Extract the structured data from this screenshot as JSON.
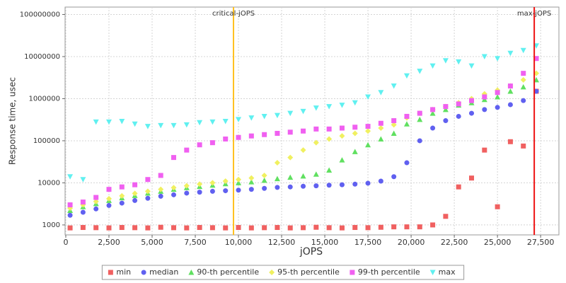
{
  "chart_data": {
    "type": "scatter",
    "x_label": "jOPS",
    "y_label": "Response time, usec",
    "yscale": "log",
    "grid": true,
    "legend": "bottom",
    "xlim": [
      -40,
      28560
    ],
    "ylim": [
      580,
      150000000
    ],
    "xticks": [
      0,
      {
        "value": 2500,
        "label": "2,500"
      },
      {
        "value": 5000,
        "label": "5,000"
      },
      {
        "value": 7500,
        "label": "7,500"
      },
      {
        "value": 10000,
        "label": "10,000"
      },
      {
        "value": 12500,
        "label": "12,500"
      },
      {
        "value": 15000,
        "label": "15,000"
      },
      {
        "value": 17500,
        "label": "17,500"
      },
      {
        "value": 20000,
        "label": "20,000"
      },
      {
        "value": 22500,
        "label": "22,500"
      },
      {
        "value": 25000,
        "label": "25,000"
      },
      {
        "value": 27500,
        "label": "27,500"
      }
    ],
    "yticks": [
      1000,
      10000,
      100000,
      1000000,
      10000000,
      100000000
    ],
    "markers": [
      {
        "label": "critical-jOPS",
        "value": 9713,
        "color": "#ffc020"
      },
      {
        "label": "max-jOPS",
        "value": 27131,
        "color": "#ee1111"
      }
    ],
    "x": [
      250,
      1000,
      1750,
      2500,
      3250,
      4000,
      4750,
      5500,
      6250,
      7000,
      7750,
      8500,
      9250,
      10000,
      10750,
      11500,
      12250,
      13000,
      13750,
      14500,
      15250,
      16000,
      16750,
      17500,
      18250,
      19000,
      19750,
      20500,
      21250,
      22000,
      22750,
      23500,
      24250,
      25000,
      25750,
      26500,
      27250
    ],
    "series": [
      {
        "name": "min",
        "color": "#f06060",
        "marker": "square",
        "values": [
          850,
          870,
          860,
          850,
          870,
          860,
          850,
          880,
          860,
          850,
          870,
          860,
          850,
          870,
          850,
          860,
          870,
          850,
          860,
          880,
          860,
          850,
          870,
          860,
          880,
          900,
          900,
          900,
          1000,
          1600,
          8000,
          13000,
          60000,
          2700,
          95000,
          75000,
          1500000
        ]
      },
      {
        "name": "median",
        "color": "#6060f0",
        "marker": "circle",
        "values": [
          1700,
          2000,
          2400,
          2900,
          3300,
          3800,
          4300,
          4800,
          5200,
          5700,
          6000,
          6300,
          6500,
          6700,
          7000,
          7400,
          7800,
          8000,
          8300,
          8500,
          8800,
          9000,
          9300,
          9800,
          11000,
          14000,
          30000,
          100000,
          200000,
          300000,
          380000,
          450000,
          550000,
          620000,
          720000,
          900000,
          1500000
        ]
      },
      {
        "name": "90-th percentile",
        "color": "#60e060",
        "marker": "triangle-up",
        "values": [
          2200,
          2700,
          3200,
          3800,
          4400,
          5000,
          5700,
          6300,
          7000,
          7700,
          8200,
          8800,
          9500,
          10000,
          10500,
          11500,
          12500,
          13500,
          14500,
          16000,
          20000,
          35000,
          55000,
          80000,
          110000,
          150000,
          250000,
          320000,
          450000,
          550000,
          700000,
          800000,
          950000,
          1100000,
          1500000,
          1900000,
          2800000
        ]
      },
      {
        "name": "95-th percentile",
        "color": "#f0f060",
        "marker": "diamond",
        "values": [
          2500,
          3000,
          3600,
          4200,
          4900,
          5600,
          6300,
          7000,
          7700,
          8500,
          9300,
          10000,
          11000,
          12000,
          13000,
          15000,
          30000,
          40000,
          60000,
          90000,
          110000,
          130000,
          150000,
          170000,
          200000,
          240000,
          350000,
          450000,
          550000,
          650000,
          800000,
          1000000,
          1300000,
          1600000,
          2000000,
          2800000,
          4000000
        ]
      },
      {
        "name": "99-th percentile",
        "color": "#f060f0",
        "marker": "square",
        "values": [
          3000,
          3500,
          4500,
          7000,
          8000,
          9000,
          12000,
          15000,
          40000,
          60000,
          80000,
          90000,
          110000,
          120000,
          130000,
          140000,
          150000,
          160000,
          170000,
          190000,
          190000,
          200000,
          210000,
          220000,
          260000,
          300000,
          380000,
          450000,
          550000,
          650000,
          750000,
          900000,
          1100000,
          1400000,
          2000000,
          4000000,
          9000000
        ]
      },
      {
        "name": "max",
        "color": "#60f0f0",
        "marker": "triangle-down",
        "values": [
          14000,
          12000,
          280000,
          280000,
          290000,
          250000,
          220000,
          230000,
          230000,
          240000,
          270000,
          280000,
          290000,
          320000,
          350000,
          380000,
          400000,
          450000,
          500000,
          600000,
          650000,
          700000,
          800000,
          1100000,
          1400000,
          2000000,
          3500000,
          4500000,
          6000000,
          8000000,
          7500000,
          6000000,
          10000000,
          9000000,
          12000000,
          14000000,
          18000000
        ]
      }
    ]
  }
}
